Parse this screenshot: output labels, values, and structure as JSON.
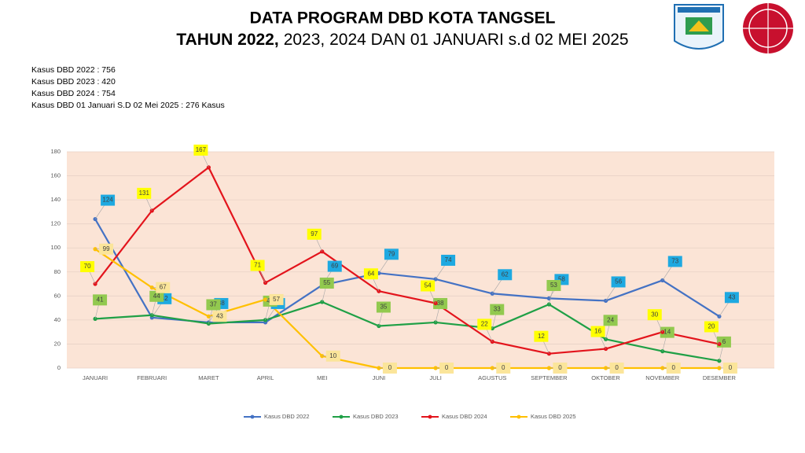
{
  "chart_data": {
    "type": "line",
    "title": [
      "DATA PROGRAM DBD KOTA TANGSEL",
      "TAHUN 2022,",
      "2023, 2024 DAN 01 JANUARI s.d 02 MEI 2025"
    ],
    "notes": [
      "Kasus DBD 2022 : 756",
      "Kasus DBD 2023 : 420",
      "Kasus DBD 2024 : 754",
      "Kasus DBD 01 Januari S.D 02 Mei 2025 : 276 Kasus"
    ],
    "categories": [
      "JANUARI",
      "FEBRUARI",
      "MARET",
      "APRIL",
      "MEI",
      "JUNI",
      "JULI",
      "AGUSTUS",
      "SEPTEMBER",
      "OKTOBER",
      "NOVEMBER",
      "DESEMBER"
    ],
    "series": [
      {
        "name": "Kasus DBD 2022",
        "color": "#4472c4",
        "label_color": "#1ea9e1",
        "values": [
          124,
          42,
          38,
          38,
          69,
          79,
          74,
          62,
          58,
          56,
          73,
          43
        ]
      },
      {
        "name": "Kasus DBD 2023",
        "color": "#1fa046",
        "label_color": "#92c94f",
        "values": [
          41,
          44,
          37,
          40,
          55,
          35,
          38,
          33,
          53,
          24,
          14,
          6
        ]
      },
      {
        "name": "Kasus DBD 2024",
        "color": "#e3141c",
        "label_color": "#ffff00",
        "values": [
          70,
          131,
          167,
          71,
          97,
          64,
          54,
          22,
          12,
          16,
          30,
          20
        ]
      },
      {
        "name": "Kasus DBD 2025",
        "color": "#ffc000",
        "label_color": "#fbe59a",
        "values": [
          99,
          67,
          43,
          57,
          10,
          0,
          0,
          0,
          0,
          0,
          0,
          0
        ]
      }
    ],
    "ylim": [
      0,
      180
    ],
    "yticks": [
      0,
      20,
      40,
      60,
      80,
      100,
      120,
      140,
      160,
      180
    ],
    "grid": true,
    "plot_background": "#fbe4d6",
    "legend": "bottom"
  }
}
